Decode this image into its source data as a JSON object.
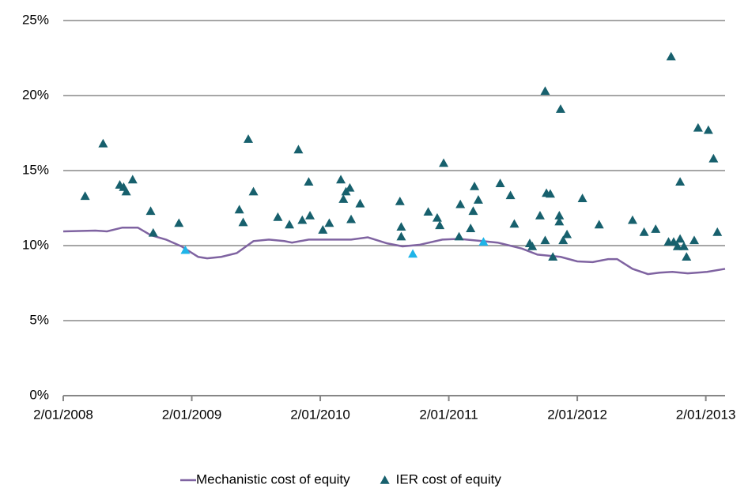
{
  "chart_data": {
    "type": "line",
    "xlim": [
      2008,
      2013.15
    ],
    "xticks": [
      {
        "value": 2008,
        "label": "2/01/2008"
      },
      {
        "value": 2009,
        "label": "2/01/2009"
      },
      {
        "value": 2010,
        "label": "2/01/2010"
      },
      {
        "value": 2011,
        "label": "2/01/2011"
      },
      {
        "value": 2012,
        "label": "2/01/2012"
      },
      {
        "value": 2013,
        "label": "2/01/2013"
      }
    ],
    "ylim": [
      0,
      25
    ],
    "yticks": [
      {
        "value": 0,
        "label": "0%"
      },
      {
        "value": 5,
        "label": "5%"
      },
      {
        "value": 10,
        "label": "10%"
      },
      {
        "value": 15,
        "label": "15%"
      },
      {
        "value": 20,
        "label": "20%"
      },
      {
        "value": 25,
        "label": "25%"
      }
    ],
    "grid": true,
    "legend": "bottom",
    "series": [
      {
        "name": "Mechanistic cost of equity",
        "type": "line",
        "color": "#7f63a1",
        "x": [
          2008.0,
          2008.25,
          2008.34,
          2008.46,
          2008.58,
          2008.68,
          2008.8,
          2008.92,
          2009.05,
          2009.12,
          2009.23,
          2009.35,
          2009.48,
          2009.6,
          2009.72,
          2009.78,
          2009.91,
          2010.09,
          2010.24,
          2010.37,
          2010.52,
          2010.64,
          2010.77,
          2010.95,
          2011.08,
          2011.26,
          2011.38,
          2011.57,
          2011.69,
          2011.87,
          2012.0,
          2012.12,
          2012.24,
          2012.31,
          2012.43,
          2012.55,
          2012.64,
          2012.74,
          2012.86,
          2013.01,
          2013.15
        ],
        "values": [
          10.95,
          11.0,
          10.95,
          11.2,
          11.2,
          10.7,
          10.4,
          9.95,
          9.25,
          9.15,
          9.25,
          9.5,
          10.3,
          10.4,
          10.3,
          10.2,
          10.4,
          10.4,
          10.4,
          10.55,
          10.15,
          9.95,
          10.05,
          10.4,
          10.45,
          10.3,
          10.2,
          9.8,
          9.4,
          9.25,
          8.95,
          8.9,
          9.1,
          9.1,
          8.45,
          8.1,
          8.2,
          8.25,
          8.15,
          8.25,
          8.45
        ]
      },
      {
        "name": "IER cost of equity",
        "type": "scatter",
        "color": "#17606d",
        "x": [
          2008.17,
          2008.31,
          2008.44,
          2008.47,
          2008.49,
          2008.54,
          2008.68,
          2008.7,
          2008.9,
          2009.37,
          2009.4,
          2009.44,
          2009.48,
          2009.67,
          2009.76,
          2009.83,
          2009.86,
          2009.91,
          2009.92,
          2010.02,
          2010.07,
          2010.16,
          2010.18,
          2010.2,
          2010.23,
          2010.24,
          2010.31,
          2010.62,
          2010.63,
          2010.63,
          2010.84,
          2010.91,
          2010.93,
          2010.96,
          2011.09,
          2011.17,
          2011.19,
          2011.2,
          2011.23,
          2011.08,
          2011.4,
          2011.48,
          2011.51,
          2011.63,
          2011.65,
          2011.71,
          2011.75,
          2011.75,
          2011.76,
          2011.79,
          2011.81,
          2011.86,
          2011.86,
          2011.87,
          2011.89,
          2011.92,
          2012.04,
          2012.17,
          2012.43,
          2012.52,
          2012.61,
          2012.71,
          2012.73,
          2012.75,
          2012.78,
          2012.8,
          2012.8,
          2012.83,
          2012.85,
          2012.91,
          2012.94,
          2013.02,
          2013.06,
          2013.09
        ],
        "values": [
          13.3,
          16.8,
          14.05,
          13.9,
          13.6,
          14.4,
          12.3,
          10.85,
          11.5,
          12.4,
          11.55,
          17.1,
          13.6,
          11.9,
          11.4,
          16.4,
          11.7,
          14.25,
          12.0,
          11.05,
          11.5,
          14.4,
          13.1,
          13.6,
          13.85,
          11.75,
          12.8,
          12.95,
          11.25,
          10.6,
          12.25,
          11.85,
          11.35,
          15.5,
          12.75,
          11.15,
          12.3,
          13.95,
          13.05,
          10.6,
          14.15,
          13.35,
          11.45,
          10.15,
          9.95,
          12.0,
          10.35,
          20.3,
          13.5,
          13.45,
          9.25,
          11.6,
          12.0,
          19.1,
          10.35,
          10.75,
          13.15,
          11.4,
          11.7,
          10.9,
          11.1,
          10.25,
          22.6,
          10.25,
          9.95,
          10.45,
          14.25,
          9.95,
          9.25,
          10.35,
          17.85,
          17.7,
          15.8,
          10.9
        ]
      },
      {
        "type": "scatter",
        "color": "#1fb4e8",
        "x": [
          2008.95,
          2010.72,
          2011.27
        ],
        "values": [
          9.7,
          9.45,
          10.25
        ]
      }
    ]
  }
}
